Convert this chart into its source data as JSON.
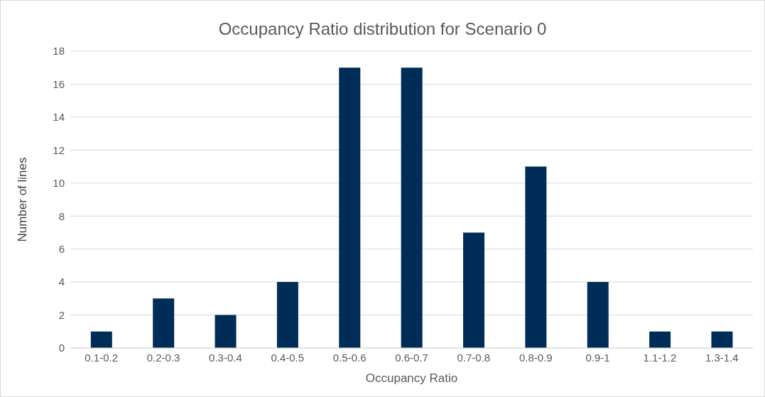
{
  "chart_data": {
    "type": "bar",
    "title": "Occupancy Ratio distribution for Scenario 0",
    "xlabel": "Occupancy Ratio",
    "ylabel": "Number of lines",
    "categories": [
      "0.1-0.2",
      "0.2-0.3",
      "0.3-0.4",
      "0.4-0.5",
      "0.5-0.6",
      "0.6-0.7",
      "0.7-0.8",
      "0.8-0.9",
      "0.9-1",
      "1.1-1.2",
      "1.3-1.4"
    ],
    "values": [
      1,
      3,
      2,
      4,
      17,
      17,
      7,
      11,
      4,
      1,
      1
    ],
    "color": "#002d57",
    "ylim": [
      0,
      18
    ],
    "yticks": [
      0,
      2,
      4,
      6,
      8,
      10,
      12,
      14,
      16,
      18
    ],
    "grid": "y",
    "legend": false
  }
}
